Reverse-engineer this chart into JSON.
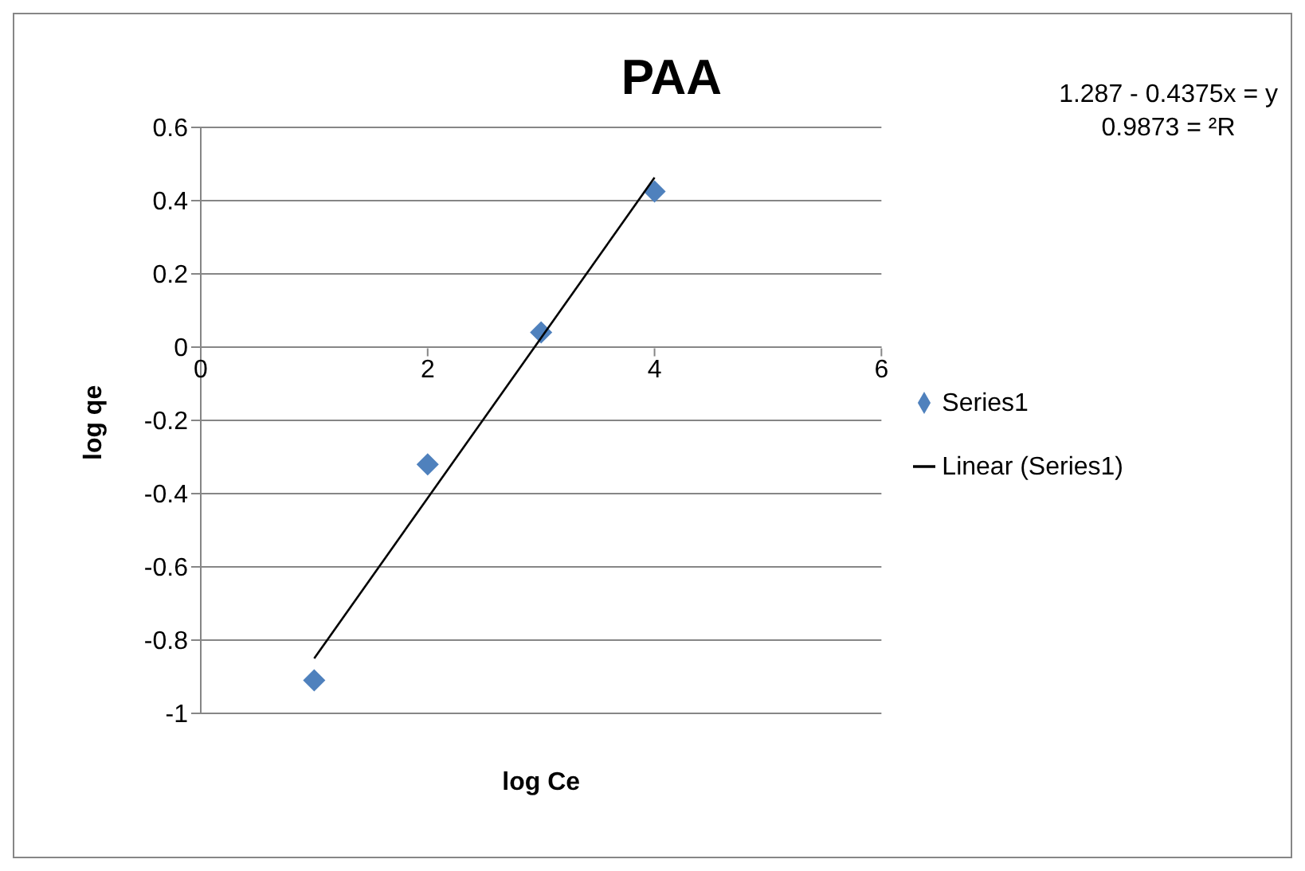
{
  "chart_data": {
    "type": "scatter",
    "title": "PAA",
    "xlabel": "log Ce",
    "ylabel": "log qe",
    "annotations": [
      "1.287 - 0.4375x = y",
      "0.9873 = ²R"
    ],
    "x": [
      1,
      2,
      3,
      4
    ],
    "series": [
      {
        "name": "Series1",
        "color": "#4f81bd",
        "values": [
          -0.91,
          -0.32,
          0.04,
          0.425
        ],
        "marker": "diamond"
      },
      {
        "name": "Linear (Series1)",
        "type": "line",
        "color": "#000000",
        "x": [
          1,
          4
        ],
        "values": [
          -0.85,
          0.463
        ],
        "marker": "none"
      }
    ],
    "xlim": [
      0,
      6
    ],
    "xticks": [
      0,
      2,
      4,
      6
    ],
    "ylim": [
      -1,
      0.6
    ],
    "yticks": [
      -1,
      -0.8,
      -0.6,
      -0.4,
      -0.2,
      0,
      0.2,
      0.4,
      0.6
    ],
    "grid": "y",
    "legend": "right"
  }
}
